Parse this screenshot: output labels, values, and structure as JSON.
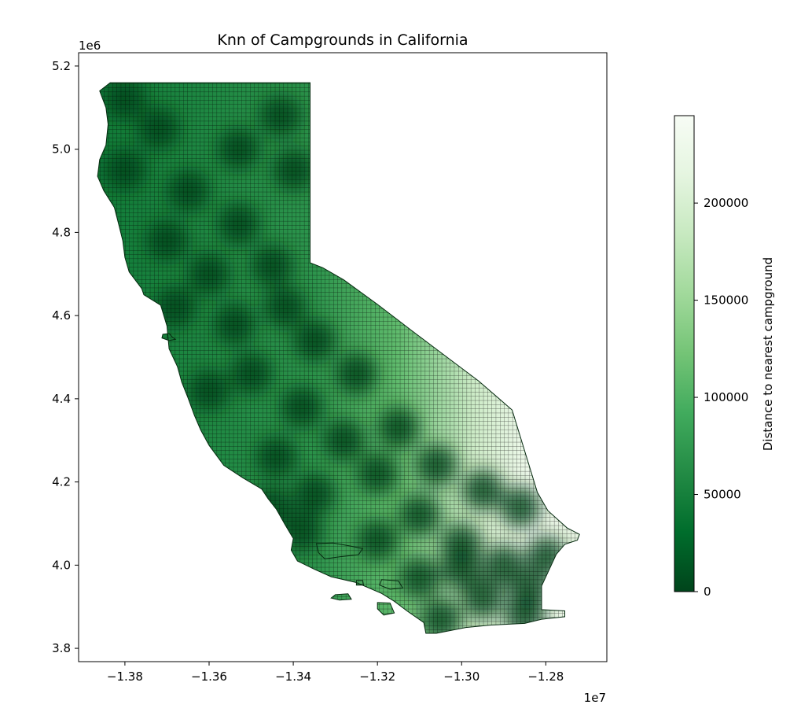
{
  "chart_data": {
    "type": "heatmap",
    "title": "Knn of Campgrounds in California",
    "xlabel": "",
    "ylabel": "",
    "x_offset_label": "1e7",
    "y_offset_label": "1e6",
    "xlim": [
      -1.391,
      -1.2655
    ],
    "ylim": [
      3.768,
      5.232
    ],
    "xticks": [
      {
        "value": -1.38,
        "label": "−1.38"
      },
      {
        "value": -1.36,
        "label": "−1.36"
      },
      {
        "value": -1.34,
        "label": "−1.34"
      },
      {
        "value": -1.32,
        "label": "−1.32"
      },
      {
        "value": -1.3,
        "label": "−1.30"
      },
      {
        "value": -1.28,
        "label": "−1.28"
      }
    ],
    "yticks": [
      {
        "value": 3.8,
        "label": "3.8"
      },
      {
        "value": 4.0,
        "label": "4.0"
      },
      {
        "value": 4.2,
        "label": "4.2"
      },
      {
        "value": 4.4,
        "label": "4.4"
      },
      {
        "value": 4.6,
        "label": "4.6"
      },
      {
        "value": 4.8,
        "label": "4.8"
      },
      {
        "value": 5.0,
        "label": "5.0"
      },
      {
        "value": 5.2,
        "label": "5.2"
      }
    ],
    "colormap": {
      "name": "Greens_r",
      "min": 0,
      "max": 245000,
      "stops": [
        "#00441b",
        "#006d2c",
        "#238b45",
        "#41ab5d",
        "#74c476",
        "#a1d99b",
        "#c7e9c0",
        "#e5f5e0",
        "#f7fcf5"
      ]
    },
    "colorbar": {
      "label": "Distance to nearest campground",
      "ticks": [
        {
          "value": 0,
          "label": "0"
        },
        {
          "value": 50000,
          "label": "50000"
        },
        {
          "value": 100000,
          "label": "100000"
        },
        {
          "value": 150000,
          "label": "150000"
        },
        {
          "value": 200000,
          "label": "200000"
        }
      ]
    },
    "region_outline": [
      [
        -1.3835,
        5.16
      ],
      [
        -1.336,
        5.16
      ],
      [
        -1.336,
        4.727
      ],
      [
        -1.333,
        4.715
      ],
      [
        -1.328,
        4.686
      ],
      [
        -1.32,
        4.627
      ],
      [
        -1.312,
        4.565
      ],
      [
        -1.304,
        4.504
      ],
      [
        -1.296,
        4.443
      ],
      [
        -1.288,
        4.373
      ],
      [
        -1.282,
        4.175
      ],
      [
        -1.2795,
        4.131
      ],
      [
        -1.275,
        4.09
      ],
      [
        -1.272,
        4.074
      ],
      [
        -1.2725,
        4.06
      ],
      [
        -1.2755,
        4.05
      ],
      [
        -1.2775,
        4.026
      ],
      [
        -1.281,
        3.95
      ],
      [
        -1.281,
        3.893
      ],
      [
        -1.2755,
        3.89
      ],
      [
        -1.2755,
        3.876
      ],
      [
        -1.281,
        3.87
      ],
      [
        -1.285,
        3.86
      ],
      [
        -1.293,
        3.856
      ],
      [
        -1.299,
        3.85
      ],
      [
        -1.306,
        3.836
      ],
      [
        -1.3085,
        3.836
      ],
      [
        -1.309,
        3.862
      ],
      [
        -1.313,
        3.89
      ],
      [
        -1.316,
        3.913
      ],
      [
        -1.319,
        3.932
      ],
      [
        -1.325,
        3.958
      ],
      [
        -1.331,
        3.972
      ],
      [
        -1.335,
        3.99
      ],
      [
        -1.339,
        4.01
      ],
      [
        -1.3405,
        4.036
      ],
      [
        -1.34,
        4.064
      ],
      [
        -1.342,
        4.098
      ],
      [
        -1.344,
        4.134
      ],
      [
        -1.346,
        4.16
      ],
      [
        -1.3475,
        4.183
      ],
      [
        -1.352,
        4.21
      ],
      [
        -1.3565,
        4.24
      ],
      [
        -1.36,
        4.288
      ],
      [
        -1.362,
        4.325
      ],
      [
        -1.3635,
        4.36
      ],
      [
        -1.365,
        4.402
      ],
      [
        -1.3665,
        4.44
      ],
      [
        -1.3675,
        4.477
      ],
      [
        -1.3695,
        4.52
      ],
      [
        -1.37,
        4.575
      ],
      [
        -1.3715,
        4.625
      ],
      [
        -1.3755,
        4.65
      ],
      [
        -1.376,
        4.665
      ],
      [
        -1.379,
        4.705
      ],
      [
        -1.38,
        4.74
      ],
      [
        -1.3805,
        4.78
      ],
      [
        -1.3815,
        4.82
      ],
      [
        -1.3825,
        4.86
      ],
      [
        -1.385,
        4.9
      ],
      [
        -1.3865,
        4.935
      ],
      [
        -1.386,
        4.975
      ],
      [
        -1.3845,
        5.01
      ],
      [
        -1.384,
        5.06
      ],
      [
        -1.3845,
        5.1
      ],
      [
        -1.386,
        5.14
      ]
    ],
    "islands": [
      [
        [
          -1.371,
          4.555
        ],
        [
          -1.3695,
          4.557
        ],
        [
          -1.3688,
          4.549
        ],
        [
          -1.368,
          4.543
        ],
        [
          -1.3695,
          4.54
        ],
        [
          -1.3712,
          4.546
        ]
      ],
      [
        [
          -1.3345,
          4.052
        ],
        [
          -1.3305,
          4.053
        ],
        [
          -1.3265,
          4.046
        ],
        [
          -1.3235,
          4.04
        ],
        [
          -1.3245,
          4.025
        ],
        [
          -1.329,
          4.02
        ],
        [
          -1.3325,
          4.015
        ],
        [
          -1.334,
          4.03
        ]
      ],
      [
        [
          -1.33,
          3.929
        ],
        [
          -1.327,
          3.931
        ],
        [
          -1.3262,
          3.918
        ],
        [
          -1.329,
          3.916
        ],
        [
          -1.331,
          3.921
        ]
      ],
      [
        [
          -1.325,
          3.963
        ],
        [
          -1.3235,
          3.963
        ],
        [
          -1.3233,
          3.952
        ],
        [
          -1.325,
          3.952
        ]
      ],
      [
        [
          -1.319,
          3.965
        ],
        [
          -1.315,
          3.962
        ],
        [
          -1.314,
          3.945
        ],
        [
          -1.317,
          3.942
        ],
        [
          -1.3195,
          3.952
        ]
      ],
      [
        [
          -1.32,
          3.91
        ],
        [
          -1.317,
          3.909
        ],
        [
          -1.316,
          3.885
        ],
        [
          -1.3185,
          3.88
        ],
        [
          -1.32,
          3.895
        ]
      ]
    ],
    "cold_spots": [
      [
        -1.38,
        5.12
      ],
      [
        -1.372,
        5.05
      ],
      [
        -1.38,
        4.95
      ],
      [
        -1.365,
        4.9
      ],
      [
        -1.353,
        5.0
      ],
      [
        -1.343,
        5.08
      ],
      [
        -1.34,
        4.95
      ],
      [
        -1.353,
        4.82
      ],
      [
        -1.37,
        4.78
      ],
      [
        -1.36,
        4.7
      ],
      [
        -1.345,
        4.72
      ],
      [
        -1.368,
        4.62
      ],
      [
        -1.354,
        4.58
      ],
      [
        -1.342,
        4.62
      ],
      [
        -1.335,
        4.54
      ],
      [
        -1.35,
        4.46
      ],
      [
        -1.36,
        4.42
      ],
      [
        -1.325,
        4.46
      ],
      [
        -1.338,
        4.38
      ],
      [
        -1.328,
        4.3
      ],
      [
        -1.344,
        4.26
      ],
      [
        -1.315,
        4.33
      ],
      [
        -1.32,
        4.22
      ],
      [
        -1.335,
        4.17
      ],
      [
        -1.306,
        4.24
      ],
      [
        -1.295,
        4.18
      ],
      [
        -1.31,
        4.12
      ],
      [
        -1.286,
        4.14
      ],
      [
        -1.32,
        4.06
      ],
      [
        -1.3,
        4.05
      ],
      [
        -1.29,
        4.0
      ],
      [
        -1.31,
        3.97
      ],
      [
        -1.295,
        3.92
      ],
      [
        -1.285,
        3.88
      ],
      [
        -1.305,
        3.87
      ],
      [
        -1.338,
        4.08
      ],
      [
        -1.28,
        4.02
      ],
      [
        -1.3,
        3.99
      ],
      [
        -1.345,
        4.14
      ],
      [
        -1.284,
        3.94
      ]
    ]
  }
}
